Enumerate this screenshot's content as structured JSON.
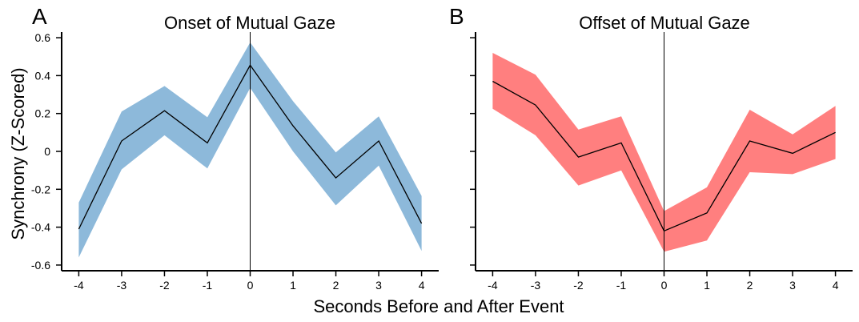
{
  "figure": {
    "ylabel": "Synchrony (Z-Scored)",
    "xlabel": "Seconds Before and After Event"
  },
  "chart_data": [
    {
      "type": "line",
      "panel": "A",
      "title": "Onset of Mutual Gaze",
      "x": [
        -4,
        -3,
        -2,
        -1,
        0,
        1,
        2,
        3,
        4
      ],
      "series": [
        {
          "values": [
            -0.41,
            0.055,
            0.215,
            0.045,
            0.455,
            0.135,
            -0.14,
            0.055,
            -0.38
          ],
          "lower": [
            -0.56,
            -0.095,
            0.085,
            -0.09,
            0.335,
            0.0,
            -0.285,
            -0.075,
            -0.525
          ],
          "upper": [
            -0.27,
            0.21,
            0.345,
            0.18,
            0.575,
            0.265,
            -0.005,
            0.185,
            -0.235
          ],
          "band_color": "#8db9da",
          "line_color": "#000000"
        }
      ],
      "xlim": [
        -4.4,
        4.4
      ],
      "ylim": [
        -0.63,
        0.63
      ],
      "xticks": [
        "-4",
        "-3",
        "-2",
        "-1",
        "0",
        "1",
        "2",
        "3",
        "4"
      ],
      "yticks": [
        "0.6",
        "0.4",
        "0.2",
        "0",
        "-0.2",
        "-0.4",
        "-0.6"
      ],
      "yticks_values": [
        0.6,
        0.4,
        0.2,
        0,
        -0.2,
        -0.4,
        -0.6
      ],
      "vline_x": 0
    },
    {
      "type": "line",
      "panel": "B",
      "title": "Offset of Mutual Gaze",
      "x": [
        -4,
        -3,
        -2,
        -1,
        0,
        1,
        2,
        3,
        4
      ],
      "series": [
        {
          "values": [
            0.37,
            0.245,
            -0.03,
            0.045,
            -0.42,
            -0.325,
            0.055,
            -0.01,
            0.1
          ],
          "lower": [
            0.225,
            0.085,
            -0.18,
            -0.1,
            -0.53,
            -0.47,
            -0.11,
            -0.12,
            -0.04
          ],
          "upper": [
            0.52,
            0.405,
            0.115,
            0.185,
            -0.315,
            -0.19,
            0.22,
            0.09,
            0.24
          ],
          "band_color": "#ff7f7f",
          "line_color": "#000000"
        }
      ],
      "xlim": [
        -4.4,
        4.4
      ],
      "ylim": [
        -0.63,
        0.63
      ],
      "xticks": [
        "-4",
        "-3",
        "-2",
        "-1",
        "0",
        "1",
        "2",
        "3",
        "4"
      ],
      "yticks": [],
      "yticks_values": [
        0.6,
        0.4,
        0.2,
        0,
        -0.2,
        -0.4,
        -0.6
      ],
      "vline_x": 0
    }
  ]
}
